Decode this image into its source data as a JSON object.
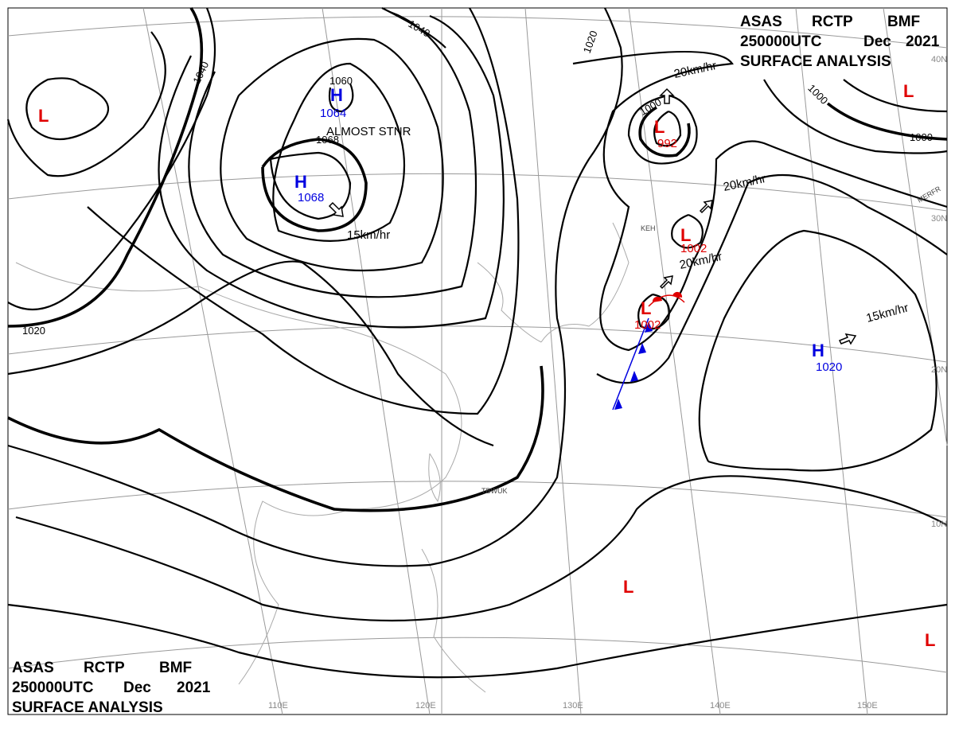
{
  "header": {
    "line1": [
      "ASAS",
      "RCTP",
      "BMF"
    ],
    "line2": [
      "250000UTC",
      "Dec",
      "2021"
    ],
    "line3": "SURFACE ANALYSIS"
  },
  "longitude_labels": [
    "110E",
    "120E",
    "130E",
    "140E",
    "150E"
  ],
  "latitude_labels": [
    "40N",
    "30N",
    "20N",
    "10N"
  ],
  "pressure_systems": [
    {
      "type": "L",
      "pressure": ""
    },
    {
      "type": "H",
      "pressure": "1064"
    },
    {
      "type": "H",
      "pressure": "1068"
    },
    {
      "type": "L",
      "pressure": "992"
    },
    {
      "type": "L",
      "pressure": "1002"
    },
    {
      "type": "L",
      "pressure": "1002"
    },
    {
      "type": "H",
      "pressure": "1020"
    },
    {
      "type": "L",
      "pressure": ""
    },
    {
      "type": "L",
      "pressure": ""
    },
    {
      "type": "L",
      "pressure": ""
    }
  ],
  "isobar_labels": [
    "1040",
    "1040",
    "1020",
    "1020",
    "1000",
    "1000",
    "1000",
    "1060",
    "1068"
  ],
  "movement_labels": [
    "ALMOST STNR",
    "15km/hr",
    "20km/hr",
    "20km/hr",
    "20km/hr",
    "15km/hr"
  ],
  "station_labels": [
    "TBWUK",
    "KEH",
    "MERFR"
  ],
  "colors": {
    "low": "#e00000",
    "high": "#0000e0",
    "isobar": "#000000",
    "grid": "#999999",
    "cold_front": "#0000e0",
    "warm_front": "#e00000"
  }
}
